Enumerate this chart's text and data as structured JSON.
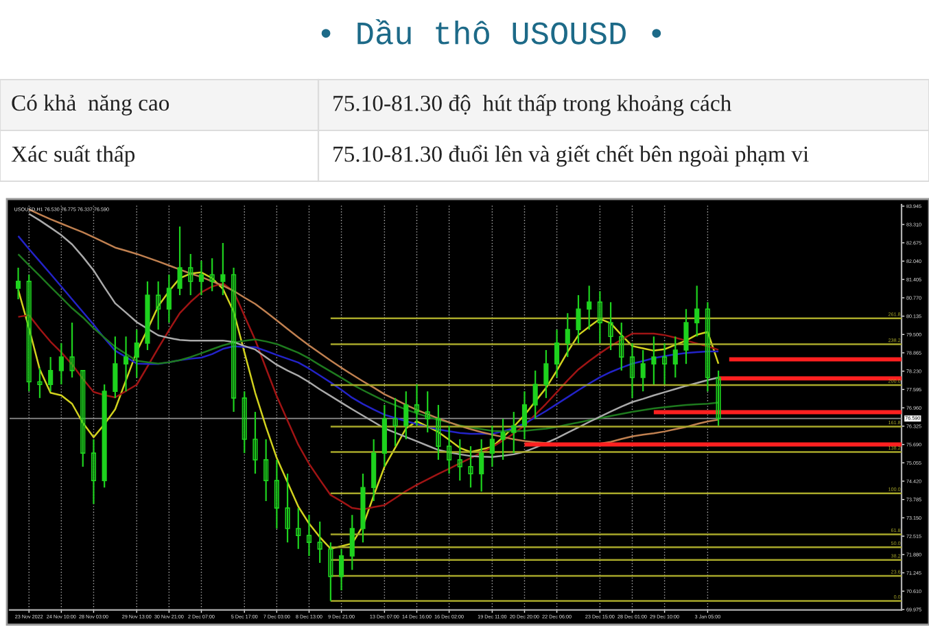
{
  "chart_data": {
    "type": "candlestick",
    "title": "• Dầu thô USOUSD •",
    "annotations": [
      "Có khả  năng cao",
      "75.10-81.30 độ  hút thấp trong khoảng cách",
      "Xác suất thấp",
      "75.10-81.30 đuổi lên và giết chết bên ngoài phạm vi",
      "USOUSD,H1 76.530 76.775 76.337 76.590"
    ],
    "categories": [
      null,
      "23 Nov 2022",
      null,
      null,
      "24 Nov 10:00",
      null,
      null,
      "28 Nov 03:00",
      null,
      null,
      null,
      "29 Nov 13:00",
      null,
      null,
      "30 Nov 21:00",
      null,
      null,
      "2 Dec 07:00",
      null,
      null,
      null,
      "5 Dec 17:00",
      null,
      null,
      "7 Dec 03:00",
      null,
      null,
      "8 Dec 13:00",
      null,
      null,
      "9 Dec 21:00",
      null,
      null,
      null,
      "13 Dec 07:00",
      null,
      null,
      "14 Dec 16:00",
      null,
      null,
      "16 Dec 02:00",
      null,
      null,
      null,
      "19 Dec 11:00",
      null,
      null,
      "20 Dec 20:00",
      null,
      null,
      "22 Dec 06:00",
      null,
      null,
      null,
      "23 Dec 15:00",
      null,
      null,
      "28 Dec 01:00",
      null,
      null,
      "29 Dec 10:00",
      null,
      null,
      null,
      "3 Jan 05:00",
      null,
      null,
      null,
      null,
      null,
      null,
      null,
      null,
      null,
      null,
      null,
      null,
      null,
      null,
      null,
      null,
      null,
      null
    ],
    "ohlc": [
      [
        81.1,
        81.81,
        80.72,
        81.34
      ],
      [
        81.34,
        81.57,
        77.53,
        77.86
      ],
      [
        77.86,
        78.34,
        77.3,
        77.77
      ],
      [
        77.77,
        78.72,
        77.53,
        78.25
      ],
      [
        78.25,
        79.2,
        77.77,
        78.72
      ],
      [
        78.72,
        79.91,
        78.01,
        78.25
      ],
      [
        78.25,
        78.25,
        74.92,
        75.39
      ],
      [
        75.39,
        75.87,
        73.63,
        74.44
      ],
      [
        74.44,
        77.77,
        74.2,
        77.53
      ],
      [
        77.53,
        79.43,
        77.3,
        78.48
      ],
      [
        78.48,
        79.43,
        77.53,
        78.72
      ],
      [
        78.72,
        79.67,
        78.01,
        79.2
      ],
      [
        79.2,
        81.34,
        78.96,
        80.86
      ],
      [
        80.86,
        81.34,
        79.67,
        80.38
      ],
      [
        80.38,
        81.57,
        79.91,
        81.1
      ],
      [
        81.1,
        83.24,
        80.86,
        81.81
      ],
      [
        81.81,
        82.29,
        80.86,
        81.34
      ],
      [
        81.34,
        82.05,
        80.86,
        81.57
      ],
      [
        81.57,
        82.14,
        81.0,
        81.34
      ],
      [
        81.34,
        82.67,
        80.86,
        81.57
      ],
      [
        81.57,
        81.81,
        76.82,
        77.3
      ],
      [
        77.3,
        77.53,
        75.39,
        75.87
      ],
      [
        75.87,
        76.82,
        74.68,
        75.16
      ],
      [
        75.16,
        75.87,
        73.73,
        74.44
      ],
      [
        74.44,
        75.16,
        72.78,
        73.49
      ],
      [
        73.49,
        74.68,
        72.3,
        72.78
      ],
      [
        72.78,
        73.49,
        72.07,
        72.54
      ],
      [
        72.54,
        73.25,
        71.83,
        72.3
      ],
      [
        72.3,
        73.02,
        71.59,
        72.07
      ],
      [
        72.07,
        72.3,
        70.27,
        71.12
      ],
      [
        71.12,
        72.07,
        70.64,
        71.83
      ],
      [
        71.83,
        73.25,
        71.35,
        72.78
      ],
      [
        72.78,
        74.68,
        72.3,
        74.2
      ],
      [
        74.2,
        75.87,
        73.73,
        75.39
      ],
      [
        75.39,
        77.06,
        74.92,
        76.58
      ],
      [
        76.58,
        77.3,
        75.63,
        76.34
      ],
      [
        76.34,
        77.53,
        75.87,
        77.06
      ],
      [
        77.06,
        77.77,
        76.34,
        76.82
      ],
      [
        76.82,
        77.53,
        76.11,
        76.58
      ],
      [
        76.58,
        77.06,
        75.16,
        75.63
      ],
      [
        75.63,
        76.34,
        74.68,
        75.16
      ],
      [
        75.16,
        75.87,
        74.44,
        74.92
      ],
      [
        74.92,
        75.63,
        74.2,
        74.68
      ],
      [
        74.68,
        75.87,
        74.06,
        75.39
      ],
      [
        75.39,
        76.34,
        74.92,
        75.87
      ],
      [
        75.87,
        76.58,
        75.16,
        76.11
      ],
      [
        76.11,
        76.82,
        75.39,
        76.34
      ],
      [
        76.34,
        77.53,
        75.87,
        77.06
      ],
      [
        77.06,
        78.25,
        76.58,
        77.77
      ],
      [
        77.77,
        78.96,
        77.3,
        78.48
      ],
      [
        78.48,
        79.67,
        78.01,
        79.2
      ],
      [
        79.2,
        80.24,
        78.72,
        79.67
      ],
      [
        79.67,
        80.86,
        79.2,
        80.38
      ],
      [
        80.38,
        81.19,
        79.67,
        80.62
      ],
      [
        80.62,
        81.0,
        79.2,
        79.91
      ],
      [
        79.91,
        80.62,
        78.96,
        79.43
      ],
      [
        79.43,
        79.91,
        78.25,
        78.72
      ],
      [
        78.72,
        79.2,
        77.3,
        78.01
      ],
      [
        78.01,
        78.96,
        77.53,
        78.48
      ],
      [
        78.48,
        79.43,
        77.77,
        78.72
      ],
      [
        78.72,
        79.2,
        77.77,
        78.48
      ],
      [
        78.48,
        79.43,
        78.01,
        78.96
      ],
      [
        78.96,
        80.38,
        78.48,
        79.91
      ],
      [
        79.91,
        81.19,
        79.43,
        80.38
      ],
      [
        80.38,
        80.62,
        77.53,
        78.01
      ],
      [
        78.01,
        78.25,
        76.34,
        76.59
      ],
      null,
      null,
      null,
      null,
      null,
      null,
      null,
      null,
      null,
      null,
      null,
      null,
      null,
      null,
      null,
      null,
      null
    ],
    "color": "#1ed21e",
    "series": [
      {
        "type": "line",
        "color": "#d2d21e",
        "values": [
          81.05,
          79.72,
          78.29,
          77.48,
          77.39,
          77.1,
          76.44,
          75.94,
          76.39,
          76.91,
          77.91,
          78.91,
          79.67,
          80.48,
          81.0,
          81.45,
          81.61,
          81.65,
          81.45,
          81.08,
          80.29,
          78.88,
          77.48,
          76.3,
          75.22,
          74.38,
          73.54,
          72.95,
          72.48,
          72.08,
          72.17,
          72.26,
          72.87,
          73.92,
          74.92,
          75.58,
          76.25,
          76.49,
          76.31,
          76.12,
          75.85,
          75.57,
          75.43,
          75.52,
          75.61,
          75.94,
          76.31,
          76.71,
          77.18,
          77.65,
          78.25,
          78.9,
          79.48,
          79.77,
          80.04,
          79.89,
          79.48,
          79.1,
          79.02,
          78.94,
          78.99,
          79.14,
          79.29,
          79.49,
          79.59,
          78.49,
          null,
          null,
          null,
          null,
          null,
          null,
          null,
          null,
          null,
          null,
          null,
          null,
          null,
          null,
          null,
          null,
          null
        ]
      },
      {
        "type": "line",
        "color": "#a01414",
        "values": [
          80.11,
          80.17,
          79.69,
          79.25,
          78.88,
          78.46,
          77.96,
          77.51,
          77.4,
          77.32,
          77.54,
          77.76,
          78.39,
          79.03,
          79.65,
          80.24,
          80.63,
          80.96,
          81.16,
          81.27,
          80.99,
          80.15,
          79.31,
          78.33,
          77.36,
          76.52,
          75.68,
          75.02,
          74.47,
          73.94,
          73.72,
          73.49,
          73.44,
          73.52,
          73.59,
          73.83,
          74.08,
          74.29,
          74.48,
          74.67,
          74.85,
          75.04,
          75.22,
          75.41,
          75.6,
          75.83,
          76.07,
          76.35,
          76.72,
          77.1,
          77.5,
          77.91,
          78.29,
          78.58,
          78.85,
          79.1,
          79.32,
          79.53,
          79.53,
          79.53,
          79.48,
          79.39,
          79.29,
          79.19,
          79.09,
          78.97,
          null,
          null,
          null,
          null,
          null,
          null,
          null,
          null,
          null,
          null,
          null,
          null,
          null,
          null,
          null,
          null,
          null
        ]
      },
      {
        "type": "line",
        "color": "#2323c8",
        "values": [
          82.91,
          82.46,
          82.03,
          81.6,
          81.16,
          80.72,
          80.28,
          79.84,
          79.37,
          78.94,
          78.72,
          78.49,
          78.48,
          78.48,
          78.54,
          78.61,
          78.66,
          78.7,
          78.82,
          79.0,
          79.09,
          79.07,
          79.06,
          78.93,
          78.79,
          78.66,
          78.53,
          78.32,
          78.08,
          77.84,
          77.58,
          77.31,
          77.09,
          76.9,
          76.72,
          76.61,
          76.5,
          76.4,
          76.3,
          76.21,
          76.15,
          76.09,
          76.06,
          76.06,
          76.06,
          76.15,
          76.26,
          76.41,
          76.63,
          76.85,
          77.09,
          77.33,
          77.57,
          77.8,
          78.02,
          78.2,
          78.35,
          78.49,
          78.58,
          78.68,
          78.75,
          78.81,
          78.86,
          78.89,
          78.91,
          78.91,
          null,
          null,
          null,
          null,
          null,
          null,
          null,
          null,
          null,
          null,
          null,
          null,
          null,
          null,
          null,
          null,
          null
        ]
      },
      {
        "type": "line",
        "color": "#1e7a1e",
        "values": [
          82.28,
          81.9,
          81.53,
          81.15,
          80.78,
          80.41,
          80.09,
          79.72,
          79.39,
          79.07,
          78.83,
          78.59,
          78.54,
          78.49,
          78.54,
          78.61,
          78.72,
          78.85,
          78.99,
          79.12,
          79.22,
          79.28,
          79.33,
          79.26,
          79.17,
          79.02,
          78.87,
          78.67,
          78.44,
          78.22,
          78.0,
          77.77,
          77.57,
          77.38,
          77.2,
          77.05,
          76.9,
          76.77,
          76.65,
          76.54,
          76.45,
          76.35,
          76.28,
          76.22,
          76.16,
          76.15,
          76.15,
          76.16,
          76.2,
          76.24,
          76.3,
          76.38,
          76.45,
          76.53,
          76.6,
          76.68,
          76.75,
          76.82,
          76.88,
          76.94,
          76.98,
          77.02,
          77.06,
          77.08,
          77.1,
          77.14,
          null,
          null,
          null,
          null,
          null,
          null,
          null,
          null,
          null,
          null,
          null,
          null,
          null,
          null,
          null,
          null,
          null
        ]
      },
      {
        "type": "line",
        "color": "#aaaaaa",
        "values": [
          null,
          83.68,
          83.45,
          83.2,
          82.94,
          82.62,
          82.19,
          81.72,
          81.14,
          80.58,
          80.26,
          79.93,
          79.7,
          79.47,
          79.38,
          79.31,
          79.29,
          79.29,
          79.29,
          79.29,
          79.24,
          79.1,
          78.98,
          78.71,
          78.45,
          78.25,
          78.07,
          77.85,
          77.6,
          77.37,
          77.14,
          76.91,
          76.69,
          76.47,
          76.25,
          76.1,
          75.95,
          75.8,
          75.65,
          75.5,
          75.42,
          75.35,
          75.29,
          75.27,
          75.26,
          75.3,
          75.35,
          75.44,
          75.58,
          75.74,
          75.91,
          76.1,
          76.28,
          76.47,
          76.65,
          76.83,
          77.0,
          77.16,
          77.27,
          77.39,
          77.5,
          77.61,
          77.72,
          77.82,
          77.92,
          78.01,
          null,
          null,
          null,
          null,
          null,
          null,
          null,
          null,
          null,
          null,
          null,
          null,
          null,
          null,
          null,
          null,
          null
        ]
      },
      {
        "type": "line",
        "color": "#c08050",
        "values": [
          null,
          83.83,
          83.66,
          83.49,
          83.34,
          83.19,
          83.04,
          82.87,
          82.69,
          82.51,
          82.4,
          82.29,
          82.16,
          82.03,
          81.89,
          81.75,
          81.61,
          81.49,
          81.34,
          81.19,
          81.01,
          80.78,
          80.56,
          80.28,
          79.99,
          79.69,
          79.4,
          79.12,
          78.86,
          78.6,
          78.35,
          78.11,
          77.88,
          77.66,
          77.43,
          77.25,
          77.06,
          76.89,
          76.74,
          76.59,
          76.46,
          76.33,
          76.22,
          76.12,
          76.03,
          75.95,
          75.87,
          75.81,
          75.77,
          75.74,
          75.71,
          75.69,
          75.68,
          75.7,
          75.72,
          75.78,
          75.88,
          75.97,
          76.03,
          76.08,
          76.14,
          76.22,
          76.3,
          76.4,
          76.49,
          76.55,
          null,
          null,
          null,
          null,
          null,
          null,
          null,
          null,
          null,
          null,
          null,
          null,
          null,
          null,
          null,
          null,
          null
        ]
      },
      {
        "type": "line",
        "name": "261.8",
        "color": "#a8a82a",
        "values": [
          null,
          null,
          null,
          null,
          null,
          null,
          null,
          null,
          null,
          null,
          null,
          null,
          null,
          null,
          null,
          null,
          null,
          null,
          null,
          null,
          null,
          null,
          null,
          null,
          null,
          null,
          null,
          null,
          null,
          80.06,
          80.06,
          80.06,
          80.06,
          80.06,
          80.06,
          80.06,
          80.06,
          80.06,
          80.06,
          80.06,
          80.06,
          80.06,
          80.06,
          80.06,
          80.06,
          80.06,
          80.06,
          80.06,
          80.06,
          80.06,
          80.06,
          80.06,
          80.06,
          80.06,
          80.06,
          80.06,
          80.06,
          80.06,
          80.06,
          80.06,
          80.06,
          80.06,
          80.06,
          80.06,
          80.06,
          80.06,
          80.06,
          80.06,
          80.06,
          80.06,
          80.06,
          80.06,
          80.06,
          80.06,
          80.06,
          80.06,
          80.06,
          80.06,
          80.06,
          80.06,
          80.06,
          80.06,
          80.06
        ]
      },
      {
        "type": "line",
        "name": "238.2",
        "color": "#a8a82a",
        "values": [
          null,
          null,
          null,
          null,
          null,
          null,
          null,
          null,
          null,
          null,
          null,
          null,
          null,
          null,
          null,
          null,
          null,
          null,
          null,
          null,
          null,
          null,
          null,
          null,
          null,
          null,
          null,
          null,
          null,
          79.16,
          79.16,
          79.16,
          79.16,
          79.16,
          79.16,
          79.16,
          79.16,
          79.16,
          79.16,
          79.16,
          79.16,
          79.16,
          79.16,
          79.16,
          79.16,
          79.16,
          79.16,
          79.16,
          79.16,
          79.16,
          79.16,
          79.16,
          79.16,
          79.16,
          79.16,
          79.16,
          79.16,
          79.16,
          79.16,
          79.16,
          79.16,
          79.16,
          79.16,
          79.16,
          79.16,
          79.16,
          79.16,
          79.16,
          79.16,
          79.16,
          79.16,
          79.16,
          79.16,
          79.16,
          79.16,
          79.16,
          79.16,
          79.16,
          79.16,
          79.16,
          79.16,
          79.16,
          79.16
        ]
      },
      {
        "type": "line",
        "name": "200.0",
        "color": "#a8a82a",
        "values": [
          null,
          null,
          null,
          null,
          null,
          null,
          null,
          null,
          null,
          null,
          null,
          null,
          null,
          null,
          null,
          null,
          null,
          null,
          null,
          null,
          null,
          null,
          null,
          null,
          null,
          null,
          null,
          null,
          null,
          77.75,
          77.75,
          77.75,
          77.75,
          77.75,
          77.75,
          77.75,
          77.75,
          77.75,
          77.75,
          77.75,
          77.75,
          77.75,
          77.75,
          77.75,
          77.75,
          77.75,
          77.75,
          77.75,
          77.75,
          77.75,
          77.75,
          77.75,
          77.75,
          77.75,
          77.75,
          77.75,
          77.75,
          77.75,
          77.75,
          77.75,
          77.75,
          77.75,
          77.75,
          77.75,
          77.75,
          77.75,
          77.75,
          77.75,
          77.75,
          77.75,
          77.75,
          77.75,
          77.75,
          77.75,
          77.75,
          77.75,
          77.75,
          77.75,
          77.75,
          77.75,
          77.75,
          77.75,
          77.75
        ]
      },
      {
        "type": "line",
        "name": "161.8",
        "color": "#a8a82a",
        "values": [
          null,
          null,
          null,
          null,
          null,
          null,
          null,
          null,
          null,
          null,
          null,
          null,
          null,
          null,
          null,
          null,
          null,
          null,
          null,
          null,
          null,
          null,
          null,
          null,
          null,
          null,
          null,
          null,
          null,
          76.31,
          76.31,
          76.31,
          76.31,
          76.31,
          76.31,
          76.31,
          76.31,
          76.31,
          76.31,
          76.31,
          76.31,
          76.31,
          76.31,
          76.31,
          76.31,
          76.31,
          76.31,
          76.31,
          76.31,
          76.31,
          76.31,
          76.31,
          76.31,
          76.31,
          76.31,
          76.31,
          76.31,
          76.31,
          76.31,
          76.31,
          76.31,
          76.31,
          76.31,
          76.31,
          76.31,
          76.31,
          76.31,
          76.31,
          76.31,
          76.31,
          76.31,
          76.31,
          76.31,
          76.31,
          76.31,
          76.31,
          76.31,
          76.31,
          76.31,
          76.31,
          76.31,
          76.31,
          76.31
        ]
      },
      {
        "type": "line",
        "name": "138.2",
        "color": "#a8a82a",
        "values": [
          null,
          null,
          null,
          null,
          null,
          null,
          null,
          null,
          null,
          null,
          null,
          null,
          null,
          null,
          null,
          null,
          null,
          null,
          null,
          null,
          null,
          null,
          null,
          null,
          null,
          null,
          null,
          null,
          null,
          75.43,
          75.43,
          75.43,
          75.43,
          75.43,
          75.43,
          75.43,
          75.43,
          75.43,
          75.43,
          75.43,
          75.43,
          75.43,
          75.43,
          75.43,
          75.43,
          75.43,
          75.43,
          75.43,
          75.43,
          75.43,
          75.43,
          75.43,
          75.43,
          75.43,
          75.43,
          75.43,
          75.43,
          75.43,
          75.43,
          75.43,
          75.43,
          75.43,
          75.43,
          75.43,
          75.43,
          75.43,
          75.43,
          75.43,
          75.43,
          75.43,
          75.43,
          75.43,
          75.43,
          75.43,
          75.43,
          75.43,
          75.43,
          75.43,
          75.43,
          75.43,
          75.43,
          75.43,
          75.43
        ]
      },
      {
        "type": "line",
        "name": "100.0",
        "color": "#a8a82a",
        "values": [
          null,
          null,
          null,
          null,
          null,
          null,
          null,
          null,
          null,
          null,
          null,
          null,
          null,
          null,
          null,
          null,
          null,
          null,
          null,
          null,
          null,
          null,
          null,
          null,
          null,
          null,
          null,
          null,
          null,
          74.0,
          74.0,
          74.0,
          74.0,
          74.0,
          74.0,
          74.0,
          74.0,
          74.0,
          74.0,
          74.0,
          74.0,
          74.0,
          74.0,
          74.0,
          74.0,
          74.0,
          74.0,
          74.0,
          74.0,
          74.0,
          74.0,
          74.0,
          74.0,
          74.0,
          74.0,
          74.0,
          74.0,
          74.0,
          74.0,
          74.0,
          74.0,
          74.0,
          74.0,
          74.0,
          74.0,
          74.0,
          74.0,
          74.0,
          74.0,
          74.0,
          74.0,
          74.0,
          74.0,
          74.0,
          74.0,
          74.0,
          74.0,
          74.0,
          74.0,
          74.0,
          74.0,
          74.0,
          74.0
        ]
      },
      {
        "type": "line",
        "name": "61.8",
        "color": "#a8a82a",
        "values": [
          null,
          null,
          null,
          null,
          null,
          null,
          null,
          null,
          null,
          null,
          null,
          null,
          null,
          null,
          null,
          null,
          null,
          null,
          null,
          null,
          null,
          null,
          null,
          null,
          null,
          null,
          null,
          null,
          null,
          72.58,
          72.58,
          72.58,
          72.58,
          72.58,
          72.58,
          72.58,
          72.58,
          72.58,
          72.58,
          72.58,
          72.58,
          72.58,
          72.58,
          72.58,
          72.58,
          72.58,
          72.58,
          72.58,
          72.58,
          72.58,
          72.58,
          72.58,
          72.58,
          72.58,
          72.58,
          72.58,
          72.58,
          72.58,
          72.58,
          72.58,
          72.58,
          72.58,
          72.58,
          72.58,
          72.58,
          72.58,
          72.58,
          72.58,
          72.58,
          72.58,
          72.58,
          72.58,
          72.58,
          72.58,
          72.58,
          72.58,
          72.58,
          72.58,
          72.58,
          72.58,
          72.58,
          72.58,
          72.58
        ]
      },
      {
        "type": "line",
        "name": "50.0",
        "color": "#a8a82a",
        "values": [
          null,
          null,
          null,
          null,
          null,
          null,
          null,
          null,
          null,
          null,
          null,
          null,
          null,
          null,
          null,
          null,
          null,
          null,
          null,
          null,
          null,
          null,
          null,
          null,
          null,
          null,
          null,
          null,
          null,
          72.13,
          72.13,
          72.13,
          72.13,
          72.13,
          72.13,
          72.13,
          72.13,
          72.13,
          72.13,
          72.13,
          72.13,
          72.13,
          72.13,
          72.13,
          72.13,
          72.13,
          72.13,
          72.13,
          72.13,
          72.13,
          72.13,
          72.13,
          72.13,
          72.13,
          72.13,
          72.13,
          72.13,
          72.13,
          72.13,
          72.13,
          72.13,
          72.13,
          72.13,
          72.13,
          72.13,
          72.13,
          72.13,
          72.13,
          72.13,
          72.13,
          72.13,
          72.13,
          72.13,
          72.13,
          72.13,
          72.13,
          72.13,
          72.13,
          72.13,
          72.13,
          72.13,
          72.13,
          72.13
        ]
      },
      {
        "type": "line",
        "name": "38.2",
        "color": "#a8a82a",
        "values": [
          null,
          null,
          null,
          null,
          null,
          null,
          null,
          null,
          null,
          null,
          null,
          null,
          null,
          null,
          null,
          null,
          null,
          null,
          null,
          null,
          null,
          null,
          null,
          null,
          null,
          null,
          null,
          null,
          null,
          71.69,
          71.69,
          71.69,
          71.69,
          71.69,
          71.69,
          71.69,
          71.69,
          71.69,
          71.69,
          71.69,
          71.69,
          71.69,
          71.69,
          71.69,
          71.69,
          71.69,
          71.69,
          71.69,
          71.69,
          71.69,
          71.69,
          71.69,
          71.69,
          71.69,
          71.69,
          71.69,
          71.69,
          71.69,
          71.69,
          71.69,
          71.69,
          71.69,
          71.69,
          71.69,
          71.69,
          71.69,
          71.69,
          71.69,
          71.69,
          71.69,
          71.69,
          71.69,
          71.69,
          71.69,
          71.69,
          71.69,
          71.69,
          71.69,
          71.69,
          71.69,
          71.69,
          71.69,
          71.69
        ]
      },
      {
        "type": "line",
        "name": "23.6",
        "color": "#a8a82a",
        "values": [
          null,
          null,
          null,
          null,
          null,
          null,
          null,
          null,
          null,
          null,
          null,
          null,
          null,
          null,
          null,
          null,
          null,
          null,
          null,
          null,
          null,
          null,
          null,
          null,
          null,
          null,
          null,
          null,
          null,
          71.14,
          71.14,
          71.14,
          71.14,
          71.14,
          71.14,
          71.14,
          71.14,
          71.14,
          71.14,
          71.14,
          71.14,
          71.14,
          71.14,
          71.14,
          71.14,
          71.14,
          71.14,
          71.14,
          71.14,
          71.14,
          71.14,
          71.14,
          71.14,
          71.14,
          71.14,
          71.14,
          71.14,
          71.14,
          71.14,
          71.14,
          71.14,
          71.14,
          71.14,
          71.14,
          71.14,
          71.14,
          71.14,
          71.14,
          71.14,
          71.14,
          71.14,
          71.14,
          71.14,
          71.14,
          71.14,
          71.14,
          71.14,
          71.14,
          71.14,
          71.14,
          71.14,
          71.14,
          71.14
        ]
      },
      {
        "type": "line",
        "name": "0.0",
        "color": "#a8a82a",
        "values": [
          null,
          null,
          null,
          null,
          null,
          null,
          null,
          null,
          null,
          null,
          null,
          null,
          null,
          null,
          null,
          null,
          null,
          null,
          null,
          null,
          null,
          null,
          null,
          null,
          null,
          null,
          null,
          null,
          null,
          70.27,
          70.27,
          70.27,
          70.27,
          70.27,
          70.27,
          70.27,
          70.27,
          70.27,
          70.27,
          70.27,
          70.27,
          70.27,
          70.27,
          70.27,
          70.27,
          70.27,
          70.27,
          70.27,
          70.27,
          70.27,
          70.27,
          70.27,
          70.27,
          70.27,
          70.27,
          70.27,
          70.27,
          70.27,
          70.27,
          70.27,
          70.27,
          70.27,
          70.27,
          70.27,
          70.27,
          70.27,
          70.27,
          70.27,
          70.27,
          70.27,
          70.27,
          70.27,
          70.27,
          70.27,
          70.27,
          70.27,
          70.27,
          70.27,
          70.27,
          70.27,
          70.27,
          70.27,
          70.27
        ]
      },
      {
        "type": "line",
        "color": "#ff2020",
        "values": [
          null,
          null,
          null,
          null,
          null,
          null,
          null,
          null,
          null,
          null,
          null,
          null,
          null,
          null,
          null,
          null,
          null,
          null,
          null,
          null,
          null,
          null,
          null,
          null,
          null,
          null,
          null,
          null,
          null,
          null,
          null,
          null,
          null,
          null,
          null,
          null,
          null,
          null,
          null,
          null,
          null,
          null,
          null,
          null,
          null,
          null,
          null,
          null,
          null,
          null,
          null,
          null,
          null,
          null,
          null,
          null,
          null,
          null,
          null,
          null,
          null,
          null,
          null,
          null,
          null,
          null,
          78.64,
          78.64,
          78.64,
          78.64,
          78.64,
          78.64,
          78.64,
          78.64,
          78.64,
          78.64,
          78.64,
          78.64,
          78.64,
          78.64,
          78.64,
          78.64,
          78.64
        ]
      },
      {
        "type": "line",
        "color": "#ff2020",
        "values": [
          null,
          null,
          null,
          null,
          null,
          null,
          null,
          null,
          null,
          null,
          null,
          null,
          null,
          null,
          null,
          null,
          null,
          null,
          null,
          null,
          null,
          null,
          null,
          null,
          null,
          null,
          null,
          null,
          null,
          null,
          null,
          null,
          null,
          null,
          null,
          null,
          null,
          null,
          null,
          null,
          null,
          null,
          null,
          null,
          null,
          null,
          null,
          null,
          null,
          null,
          null,
          null,
          null,
          null,
          null,
          null,
          null,
          null,
          null,
          null,
          null,
          null,
          null,
          null,
          null,
          77.98,
          77.98,
          77.98,
          77.98,
          77.98,
          77.98,
          77.98,
          77.98,
          77.98,
          77.98,
          77.98,
          77.98,
          77.98,
          77.98,
          77.98,
          77.98,
          77.98,
          77.98
        ]
      },
      {
        "type": "line",
        "color": "#ff2020",
        "values": [
          null,
          null,
          null,
          null,
          null,
          null,
          null,
          null,
          null,
          null,
          null,
          null,
          null,
          null,
          null,
          null,
          null,
          null,
          null,
          null,
          null,
          null,
          null,
          null,
          null,
          null,
          null,
          null,
          null,
          null,
          null,
          null,
          null,
          null,
          null,
          null,
          null,
          null,
          null,
          null,
          null,
          null,
          null,
          null,
          null,
          null,
          null,
          null,
          null,
          null,
          null,
          null,
          null,
          null,
          null,
          null,
          null,
          null,
          null,
          76.81,
          76.81,
          76.81,
          76.81,
          76.81,
          76.81,
          76.81,
          76.81,
          76.81,
          76.81,
          76.81,
          76.81,
          76.81,
          76.81,
          76.81,
          76.81,
          76.81,
          76.81,
          76.81,
          76.81,
          76.81,
          76.81,
          76.81,
          76.81
        ]
      },
      {
        "type": "line",
        "color": "#ff2020",
        "values": [
          null,
          null,
          null,
          null,
          null,
          null,
          null,
          null,
          null,
          null,
          null,
          null,
          null,
          null,
          null,
          null,
          null,
          null,
          null,
          null,
          null,
          null,
          null,
          null,
          null,
          null,
          null,
          null,
          null,
          null,
          null,
          null,
          null,
          null,
          null,
          null,
          null,
          null,
          null,
          null,
          null,
          null,
          null,
          null,
          null,
          null,
          null,
          75.69,
          75.69,
          75.69,
          75.69,
          75.69,
          75.69,
          75.69,
          75.69,
          75.69,
          75.69,
          75.69,
          75.69,
          75.69,
          75.69,
          75.69,
          75.69,
          75.69,
          75.69,
          75.69,
          75.69,
          75.69,
          75.69,
          75.69,
          75.69,
          75.69,
          75.69,
          75.69,
          75.69,
          75.69,
          75.69,
          75.69,
          75.69,
          75.69,
          75.69,
          75.69,
          75.69
        ]
      }
    ],
    "ref_lines": [
      {
        "axis": "y",
        "value": 76.59,
        "label": "76.590",
        "color": "#909090"
      }
    ],
    "ylim": [
      69.96,
      84.0
    ],
    "yticks": [
      {
        "value": 69.975,
        "label": "69.975"
      },
      {
        "value": 70.61,
        "label": "70.610"
      },
      {
        "value": 71.245,
        "label": "71.245"
      },
      {
        "value": 71.88,
        "label": "71.880"
      },
      {
        "value": 72.515,
        "label": "72.515"
      },
      {
        "value": 73.15,
        "label": "73.150"
      },
      {
        "value": 73.785,
        "label": "73.785"
      },
      {
        "value": 74.42,
        "label": "74.420"
      },
      {
        "value": 75.055,
        "label": "75.055"
      },
      {
        "value": 75.69,
        "label": "75.690"
      },
      {
        "value": 76.325,
        "label": "76.325"
      },
      {
        "value": 76.96,
        "label": "76.960"
      },
      {
        "value": 77.595,
        "label": "77.595"
      },
      {
        "value": 78.23,
        "label": "78.230"
      },
      {
        "value": 78.865,
        "label": "78.865"
      },
      {
        "value": 79.5,
        "label": "79.500"
      },
      {
        "value": 80.135,
        "label": "80.135"
      },
      {
        "value": 80.77,
        "label": "80.770"
      },
      {
        "value": 81.405,
        "label": "81.405"
      },
      {
        "value": 82.04,
        "label": "82.040"
      },
      {
        "value": 82.675,
        "label": "82.675"
      },
      {
        "value": 83.31,
        "label": "83.310"
      },
      {
        "value": 83.945,
        "label": "83.945"
      }
    ],
    "grid": "x"
  }
}
